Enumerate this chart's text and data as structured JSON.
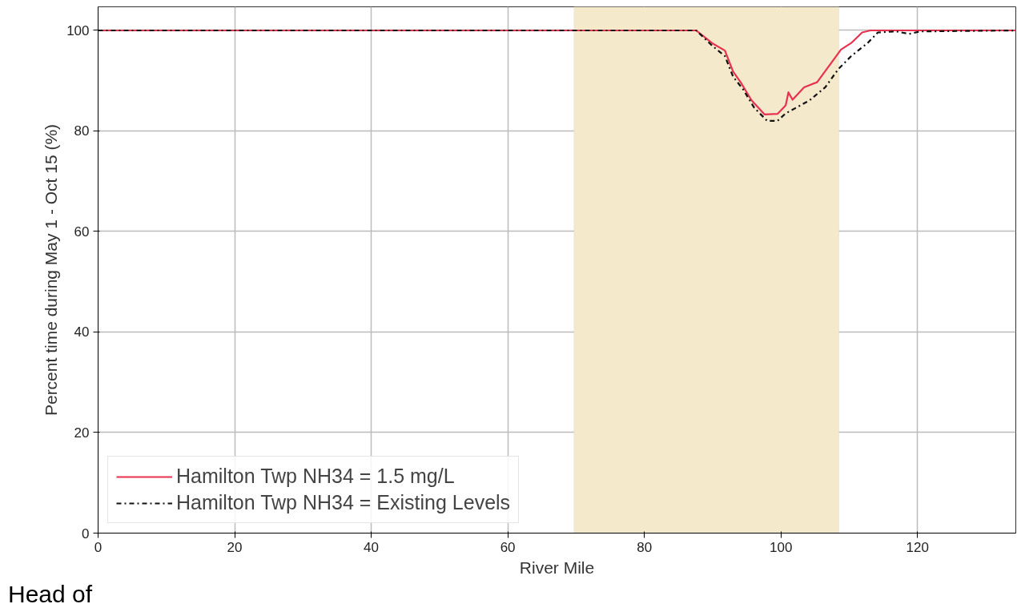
{
  "chart_data": {
    "type": "line",
    "xlabel": "River Mile",
    "ylabel": "Percent time during May 1 - Oct 15 (%)",
    "xlim": [
      0,
      134.4
    ],
    "ylim": [
      0,
      104.7
    ],
    "xticks": [
      0,
      20,
      40,
      60,
      80,
      100,
      120
    ],
    "yticks": [
      0,
      20,
      40,
      60,
      80,
      100
    ],
    "grid": true,
    "legend": "bottom left",
    "bands": [
      {
        "axis": "x",
        "from": 69.7,
        "to": 108.5,
        "color": "#f5e9cc"
      }
    ],
    "annotations": [
      "Head of"
    ],
    "series": [
      {
        "name": "Hamilton Twp NH34 = 1.5 mg/L",
        "color": "#e8304f",
        "line_style": "solid",
        "x": [
          0,
          87.6,
          89.9,
          91.8,
          93.0,
          94.1,
          95.7,
          97.6,
          99.5,
          100.7,
          101.1,
          101.7,
          103.4,
          105.3,
          107.3,
          108.8,
          110.3,
          111.9,
          113.1,
          134.4
        ],
        "values": [
          100,
          100,
          97.5,
          96,
          91.8,
          89.7,
          86.1,
          83.3,
          83.4,
          85.1,
          87.7,
          86.2,
          88.7,
          89.7,
          93.4,
          96.2,
          97.5,
          99.6,
          100,
          100
        ]
      },
      {
        "name": "Hamilton Twp NH34 = Existing Levels",
        "color": "#111111",
        "line_style": "dashdot",
        "x": [
          0,
          87.6,
          89.9,
          91.8,
          93.0,
          94.5,
          96.1,
          98.0,
          99.5,
          100.7,
          102.2,
          104.2,
          106.5,
          108.4,
          110.3,
          112.7,
          114.2,
          116.9,
          118.8,
          120.4,
          134.4
        ],
        "values": [
          100,
          100,
          97,
          94.9,
          90.8,
          88.2,
          84.6,
          82,
          82,
          83.5,
          84.6,
          86.1,
          88.7,
          92.3,
          94.9,
          97.5,
          99.6,
          99.8,
          99.3,
          99.8,
          100
        ]
      }
    ]
  }
}
